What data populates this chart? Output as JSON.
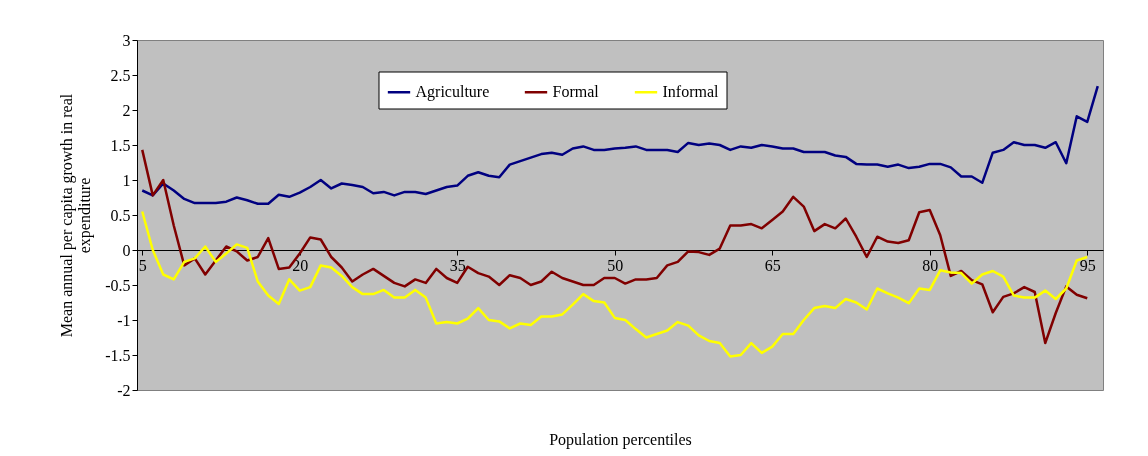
{
  "chart_data": {
    "type": "line",
    "xlabel": "Population percentiles",
    "ylabel": "Mean annual per capita growth in real expenditure",
    "x": [
      5,
      6,
      7,
      8,
      9,
      10,
      11,
      12,
      13,
      14,
      15,
      16,
      17,
      18,
      19,
      20,
      21,
      22,
      23,
      24,
      25,
      26,
      27,
      28,
      29,
      30,
      31,
      32,
      33,
      34,
      35,
      36,
      37,
      38,
      39,
      40,
      41,
      42,
      43,
      44,
      45,
      46,
      47,
      48,
      49,
      50,
      51,
      52,
      53,
      54,
      55,
      56,
      57,
      58,
      59,
      60,
      61,
      62,
      63,
      64,
      65,
      66,
      67,
      68,
      69,
      70,
      71,
      72,
      73,
      74,
      75,
      76,
      77,
      78,
      79,
      80,
      81,
      82,
      83,
      84,
      85,
      86,
      87,
      88,
      89,
      90,
      91,
      92,
      93,
      94,
      95,
      96
    ],
    "series": [
      {
        "name": "Agriculture",
        "color": "#000080",
        "values": [
          0.85,
          0.78,
          0.95,
          0.85,
          0.73,
          0.67,
          0.67,
          0.67,
          0.69,
          0.75,
          0.71,
          0.66,
          0.66,
          0.79,
          0.76,
          0.82,
          0.9,
          1.0,
          0.88,
          0.95,
          0.93,
          0.9,
          0.81,
          0.83,
          0.78,
          0.83,
          0.83,
          0.8,
          0.85,
          0.9,
          0.92,
          1.06,
          1.11,
          1.06,
          1.04,
          1.22,
          1.27,
          1.32,
          1.37,
          1.39,
          1.36,
          1.45,
          1.48,
          1.43,
          1.43,
          1.45,
          1.46,
          1.48,
          1.43,
          1.43,
          1.43,
          1.4,
          1.53,
          1.5,
          1.52,
          1.5,
          1.43,
          1.48,
          1.46,
          1.5,
          1.48,
          1.45,
          1.45,
          1.4,
          1.4,
          1.4,
          1.35,
          1.33,
          1.23,
          1.22,
          1.22,
          1.19,
          1.22,
          1.17,
          1.19,
          1.23,
          1.23,
          1.18,
          1.05,
          1.05,
          0.96,
          1.39,
          1.43,
          1.54,
          1.5,
          1.5,
          1.46,
          1.54,
          1.24,
          1.91,
          1.83,
          2.34
        ]
      },
      {
        "name": "Formal",
        "color": "#800000",
        "values": [
          1.43,
          0.78,
          1.0,
          0.35,
          -0.22,
          -0.12,
          -0.35,
          -0.15,
          0.05,
          -0.02,
          -0.15,
          -0.1,
          0.17,
          -0.27,
          -0.25,
          -0.05,
          0.18,
          0.15,
          -0.1,
          -0.25,
          -0.45,
          -0.35,
          -0.27,
          -0.37,
          -0.47,
          -0.52,
          -0.42,
          -0.47,
          -0.27,
          -0.4,
          -0.47,
          -0.24,
          -0.33,
          -0.38,
          -0.5,
          -0.36,
          -0.4,
          -0.5,
          -0.45,
          -0.31,
          -0.4,
          -0.45,
          -0.5,
          -0.5,
          -0.4,
          -0.4,
          -0.48,
          -0.42,
          -0.42,
          -0.4,
          -0.22,
          -0.17,
          -0.02,
          -0.03,
          -0.07,
          0.02,
          0.35,
          0.35,
          0.37,
          0.31,
          0.43,
          0.55,
          0.76,
          0.62,
          0.27,
          0.37,
          0.31,
          0.45,
          0.19,
          -0.1,
          0.19,
          0.12,
          0.1,
          0.14,
          0.54,
          0.57,
          0.21,
          -0.37,
          -0.3,
          -0.43,
          -0.49,
          -0.89,
          -0.67,
          -0.62,
          -0.53,
          -0.6,
          -1.33,
          -0.9,
          -0.52,
          -0.64,
          -0.69,
          null
        ]
      },
      {
        "name": "Informal",
        "color": "#ffff00",
        "values": [
          0.55,
          0.0,
          -0.35,
          -0.42,
          -0.17,
          -0.12,
          0.05,
          -0.17,
          -0.05,
          0.08,
          0.03,
          -0.45,
          -0.65,
          -0.77,
          -0.42,
          -0.58,
          -0.53,
          -0.22,
          -0.25,
          -0.37,
          -0.53,
          -0.63,
          -0.63,
          -0.57,
          -0.68,
          -0.68,
          -0.57,
          -0.68,
          -1.05,
          -1.03,
          -1.05,
          -0.98,
          -0.83,
          -1.0,
          -1.02,
          -1.12,
          -1.05,
          -1.07,
          -0.95,
          -0.95,
          -0.92,
          -0.78,
          -0.63,
          -0.73,
          -0.75,
          -0.97,
          -1.0,
          -1.13,
          -1.25,
          -1.2,
          -1.15,
          -1.03,
          -1.08,
          -1.22,
          -1.3,
          -1.33,
          -1.52,
          -1.5,
          -1.33,
          -1.47,
          -1.38,
          -1.2,
          -1.2,
          -1.0,
          -0.83,
          -0.8,
          -0.83,
          -0.7,
          -0.75,
          -0.85,
          -0.55,
          -0.62,
          -0.68,
          -0.76,
          -0.55,
          -0.57,
          -0.29,
          -0.32,
          -0.33,
          -0.48,
          -0.35,
          -0.3,
          -0.38,
          -0.65,
          -0.68,
          -0.68,
          -0.58,
          -0.7,
          -0.55,
          -0.15,
          -0.1,
          null
        ]
      }
    ],
    "xlim": [
      4.5,
      96.5
    ],
    "xticks": [
      5,
      20,
      35,
      50,
      65,
      80,
      95
    ],
    "ylim": [
      -2,
      3
    ],
    "yticks": [
      -2,
      -1.5,
      -1,
      -0.5,
      0,
      0.5,
      1,
      1.5,
      2,
      2.5,
      3
    ],
    "grid": false,
    "legend": "top",
    "marker": "none",
    "line_style": "solid"
  }
}
